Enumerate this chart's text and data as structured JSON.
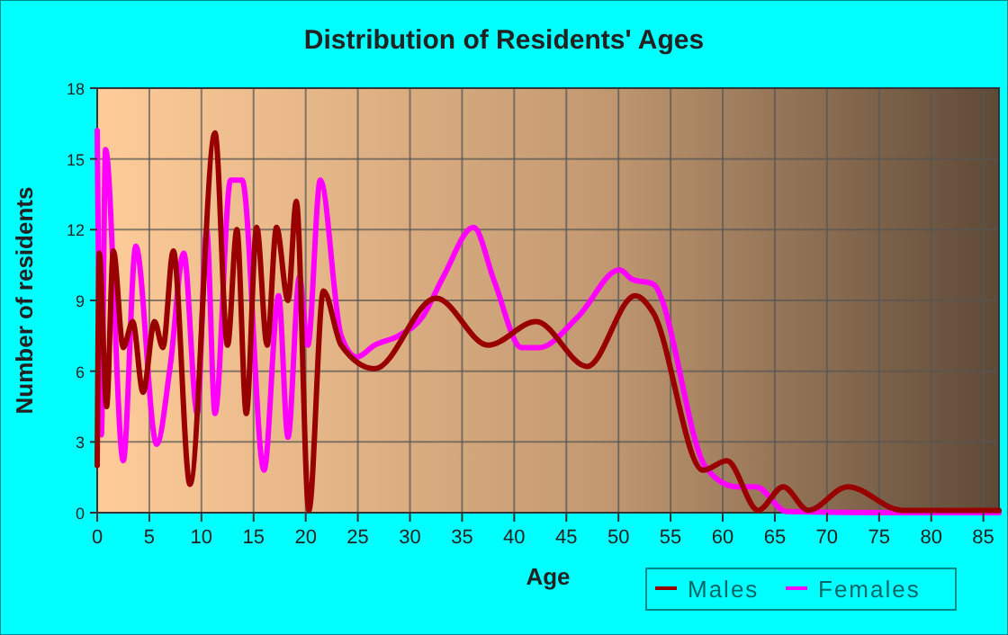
{
  "chart_data": {
    "type": "line",
    "title": "Distribution of Residents' Ages",
    "xlabel": "Age",
    "ylabel": "Number of residents",
    "xlim": [
      0,
      86.5
    ],
    "ylim": [
      0,
      18
    ],
    "xticks": [
      0,
      5,
      10,
      15,
      20,
      25,
      30,
      35,
      40,
      45,
      50,
      55,
      60,
      65,
      70,
      75,
      80,
      85
    ],
    "yticks": [
      0,
      3,
      6,
      9,
      12,
      15,
      18
    ],
    "grid": true,
    "legend": "bottom",
    "line_style": "solid",
    "marker": "none",
    "series": [
      {
        "name": "Males",
        "color": "#990000",
        "x": [
          0,
          0.2,
          0.9,
          1.55,
          2.5,
          3.4,
          4.4,
          5.5,
          6.3,
          7.3,
          8.9,
          11.3,
          12.5,
          13.4,
          14.3,
          15.3,
          16.3,
          17.2,
          18.3,
          19.1,
          20.3,
          21.7,
          23.4,
          26.6,
          32.5,
          37.5,
          42.1,
          47,
          51.6,
          53.3,
          58.1,
          60.4,
          63.4,
          65.8,
          68.2,
          72,
          77.2,
          86.5
        ],
        "values": [
          2,
          11,
          4.5,
          11.1,
          7,
          8.1,
          5.1,
          8.1,
          7,
          11.1,
          1.2,
          16.1,
          7.1,
          12,
          4.2,
          12.1,
          7.1,
          12.1,
          9,
          13.2,
          0.1,
          9.4,
          7.1,
          6.1,
          9.1,
          7.1,
          8.1,
          6.2,
          9.2,
          8.5,
          1.8,
          2.2,
          0.1,
          1.1,
          0.1,
          1.1,
          0.1,
          0.1
        ]
      },
      {
        "name": "Females",
        "color": "#ff00ff",
        "x": [
          0,
          0.4,
          0.8,
          2.5,
          3.7,
          5.7,
          7,
          8.3,
          9.6,
          10.5,
          11.3,
          12.8,
          13.9,
          16,
          17.4,
          18.3,
          19.4,
          20.2,
          21.4,
          23.4,
          24.9,
          26.6,
          28.9,
          31.2,
          33.2,
          36.1,
          38.1,
          40.7,
          42.4,
          46.1,
          50.1,
          51.3,
          53.3,
          58.4,
          61.3,
          63.2,
          66.1,
          77,
          86.5
        ],
        "values": [
          16.2,
          3.3,
          15.4,
          2.2,
          11.3,
          2.9,
          6.2,
          11,
          4.2,
          12,
          4.2,
          14.1,
          14.1,
          1.8,
          9.2,
          3.2,
          10,
          7.1,
          14.1,
          7.5,
          6.6,
          7.1,
          7.5,
          8.3,
          10,
          12.1,
          9.8,
          7,
          7,
          8.3,
          10.3,
          9.9,
          9.7,
          1.9,
          1.1,
          1.1,
          0.05,
          0,
          0
        ]
      }
    ]
  }
}
